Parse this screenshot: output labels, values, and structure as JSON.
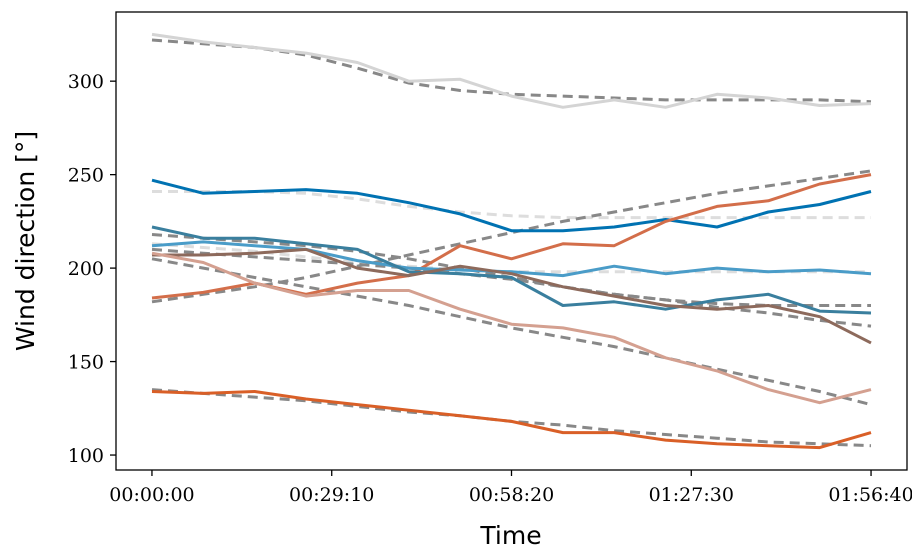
{
  "chart_data": {
    "type": "line",
    "title": "",
    "xlabel": "Time",
    "ylabel": "Wind direction [°]",
    "x_ticks": [
      "00:00:00",
      "00:29:10",
      "00:58:20",
      "01:27:30",
      "01:56:40"
    ],
    "y_ticks": [
      "100",
      "150",
      "200",
      "250",
      "300"
    ],
    "x_tick_seconds": [
      0,
      1750,
      3500,
      5250,
      7000
    ],
    "y_tick_values": [
      100,
      150,
      200,
      250,
      300
    ],
    "xlim_seconds": [
      -350,
      7350
    ],
    "ylim": [
      92,
      337
    ],
    "x_seconds": [
      0,
      500,
      1000,
      1500,
      2000,
      2500,
      3000,
      3500,
      4000,
      4500,
      5000,
      5500,
      6000,
      6500,
      7000
    ],
    "grid": false,
    "legend": "none",
    "series": [
      {
        "color": "#d4d4d4",
        "values": [
          325,
          321,
          318,
          315,
          310,
          300,
          301,
          292,
          286,
          290,
          286,
          293,
          291,
          287,
          288
        ],
        "trend": [
          322,
          320,
          318,
          314,
          307,
          299,
          295,
          293,
          292,
          291,
          290,
          290,
          290,
          290,
          289
        ],
        "trend_color": "#888888"
      },
      {
        "color": "#0072b2",
        "values": [
          247,
          240,
          241,
          242,
          240,
          235,
          229,
          220,
          220,
          222,
          226,
          222,
          230,
          234,
          241
        ],
        "trend": [
          241,
          241,
          241,
          240,
          237,
          233,
          230,
          228,
          227,
          227,
          227,
          227,
          227,
          227,
          227
        ],
        "trend_color": "#dddddd"
      },
      {
        "color": "#d36e4a",
        "values": [
          184,
          187,
          192,
          186,
          192,
          196,
          212,
          205,
          213,
          212,
          225,
          233,
          236,
          245,
          250
        ],
        "trend": [
          182,
          186,
          190,
          195,
          201,
          207,
          213,
          219,
          225,
          230,
          235,
          240,
          244,
          248,
          252
        ],
        "trend_color": "#888888"
      },
      {
        "color": "#4a9cc8",
        "values": [
          212,
          214,
          212,
          210,
          204,
          200,
          199,
          198,
          196,
          201,
          197,
          200,
          198,
          199,
          197
        ],
        "trend": [
          213,
          211,
          209,
          206,
          203,
          201,
          199,
          198,
          198,
          198,
          198,
          198,
          198,
          198,
          198
        ],
        "trend_color": "#dddddd"
      },
      {
        "color": "#3a7f9e",
        "values": [
          222,
          216,
          216,
          213,
          210,
          198,
          197,
          195,
          180,
          182,
          178,
          183,
          186,
          177,
          176
        ],
        "trend": [
          218,
          216,
          214,
          212,
          209,
          205,
          200,
          195,
          190,
          186,
          183,
          181,
          180,
          180,
          180
        ],
        "trend_color": "#888888"
      },
      {
        "color": "#8d6a5c",
        "values": [
          207,
          207,
          208,
          210,
          200,
          196,
          201,
          197,
          190,
          185,
          180,
          178,
          180,
          174,
          160
        ],
        "trend": [
          210,
          208,
          206,
          204,
          202,
          200,
          197,
          194,
          190,
          186,
          183,
          179,
          176,
          172,
          169
        ],
        "trend_color": "#888888"
      },
      {
        "color": "#d4a090",
        "values": [
          208,
          203,
          192,
          185,
          188,
          188,
          178,
          170,
          168,
          163,
          152,
          145,
          135,
          128,
          135
        ],
        "trend": [
          205,
          200,
          195,
          190,
          185,
          180,
          174,
          168,
          163,
          158,
          152,
          146,
          140,
          134,
          127
        ],
        "trend_color": "#888888"
      },
      {
        "color": "#d95f27",
        "values": [
          134,
          133,
          134,
          130,
          127,
          124,
          121,
          118,
          112,
          112,
          108,
          106,
          105,
          104,
          112
        ],
        "trend": [
          135,
          133,
          131,
          129,
          126,
          123,
          121,
          118,
          116,
          113,
          111,
          109,
          107,
          106,
          105
        ],
        "trend_color": "#888888"
      }
    ]
  }
}
